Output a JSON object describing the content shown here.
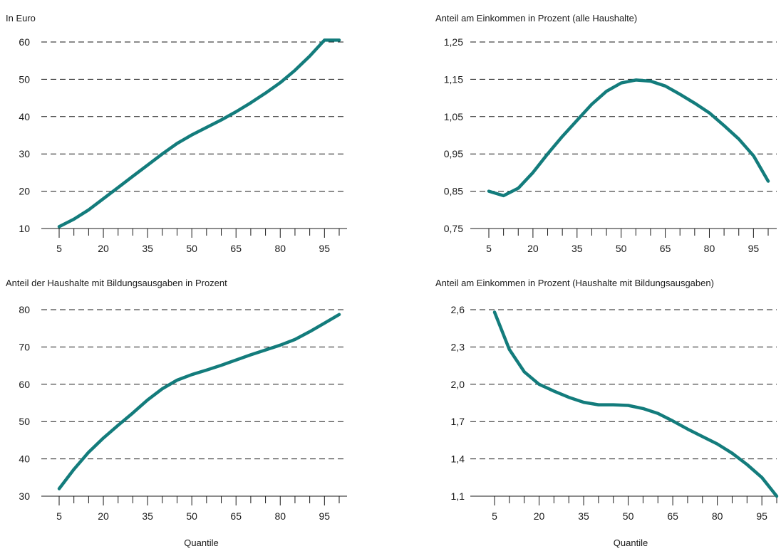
{
  "chart_data": [
    {
      "type": "line",
      "title": "In Euro",
      "xlabel": "",
      "ylabel": "",
      "y_ticks": [
        "10",
        "20",
        "30",
        "40",
        "50",
        "60"
      ],
      "ylim": [
        10,
        60
      ],
      "x_ticks": [
        "5",
        "20",
        "35",
        "50",
        "65",
        "80",
        "95"
      ],
      "xlim": [
        5,
        100
      ],
      "grid": true,
      "color": "#137c7c",
      "series": [
        {
          "x": [
            5,
            10,
            15,
            20,
            25,
            30,
            35,
            40,
            45,
            50,
            55,
            60,
            65,
            70,
            75,
            80,
            85,
            90,
            95,
            100
          ],
          "values": [
            10.5,
            12.5,
            15,
            18,
            21,
            24,
            27,
            30,
            32.8,
            35.1,
            37.1,
            39.1,
            41.3,
            43.7,
            46.3,
            49.1,
            52.4,
            56.2,
            60.5,
            60.5
          ]
        }
      ]
    },
    {
      "type": "line",
      "title": "Anteil am Einkommen in Prozent (alle Haushalte)",
      "xlabel": "",
      "ylabel": "",
      "y_ticks": [
        "0,75",
        "0,85",
        "0,95",
        "1,05",
        "1,15",
        "1,25"
      ],
      "ylim": [
        0.75,
        1.25
      ],
      "x_ticks": [
        "5",
        "20",
        "35",
        "50",
        "65",
        "80",
        "95"
      ],
      "xlim": [
        5,
        100
      ],
      "grid": true,
      "color": "#137c7c",
      "series": [
        {
          "x": [
            5,
            10,
            15,
            20,
            25,
            30,
            35,
            40,
            45,
            50,
            55,
            60,
            65,
            70,
            75,
            80,
            85,
            90,
            95,
            100
          ],
          "values": [
            0.85,
            0.838,
            0.858,
            0.9,
            0.95,
            0.997,
            1.04,
            1.083,
            1.118,
            1.14,
            1.148,
            1.145,
            1.132,
            1.11,
            1.086,
            1.06,
            1.026,
            0.99,
            0.945,
            0.877
          ]
        }
      ]
    },
    {
      "type": "line",
      "title": "Anteil der Haushalte mit Bildungsausgaben in Prozent",
      "xlabel": "Quantile",
      "ylabel": "",
      "y_ticks": [
        "30",
        "40",
        "50",
        "60",
        "70",
        "80"
      ],
      "ylim": [
        30,
        80
      ],
      "x_ticks": [
        "5",
        "20",
        "35",
        "50",
        "65",
        "80",
        "95"
      ],
      "xlim": [
        5,
        100
      ],
      "grid": true,
      "color": "#137c7c",
      "series": [
        {
          "x": [
            5,
            10,
            15,
            20,
            25,
            30,
            35,
            40,
            45,
            50,
            55,
            60,
            65,
            70,
            75,
            80,
            85,
            90,
            95,
            100
          ],
          "values": [
            32,
            37.2,
            41.8,
            45.6,
            49,
            52.3,
            55.8,
            58.8,
            61.1,
            62.6,
            63.8,
            65.1,
            66.5,
            67.9,
            69.2,
            70.5,
            72,
            74.1,
            76.4,
            78.7
          ]
        }
      ]
    },
    {
      "type": "line",
      "title": "Anteil am Einkommen in Prozent (Haushalte mit Bildungsausgaben)",
      "xlabel": "Quantile",
      "ylabel": "",
      "y_ticks": [
        "1,1",
        "1,4",
        "1,7",
        "2,0",
        "2,3",
        "2,6"
      ],
      "ylim": [
        1.1,
        2.6
      ],
      "x_ticks": [
        "5",
        "20",
        "35",
        "50",
        "65",
        "80",
        "95"
      ],
      "xlim": [
        5,
        100
      ],
      "grid": true,
      "color": "#137c7c",
      "series": [
        {
          "x": [
            5,
            10,
            15,
            20,
            25,
            30,
            35,
            40,
            45,
            50,
            55,
            60,
            65,
            70,
            75,
            80,
            85,
            90,
            95,
            100
          ],
          "values": [
            2.58,
            2.28,
            2.1,
            2.0,
            1.945,
            1.895,
            1.855,
            1.835,
            1.835,
            1.83,
            1.805,
            1.765,
            1.705,
            1.64,
            1.58,
            1.52,
            1.445,
            1.355,
            1.25,
            1.1
          ]
        }
      ]
    }
  ]
}
